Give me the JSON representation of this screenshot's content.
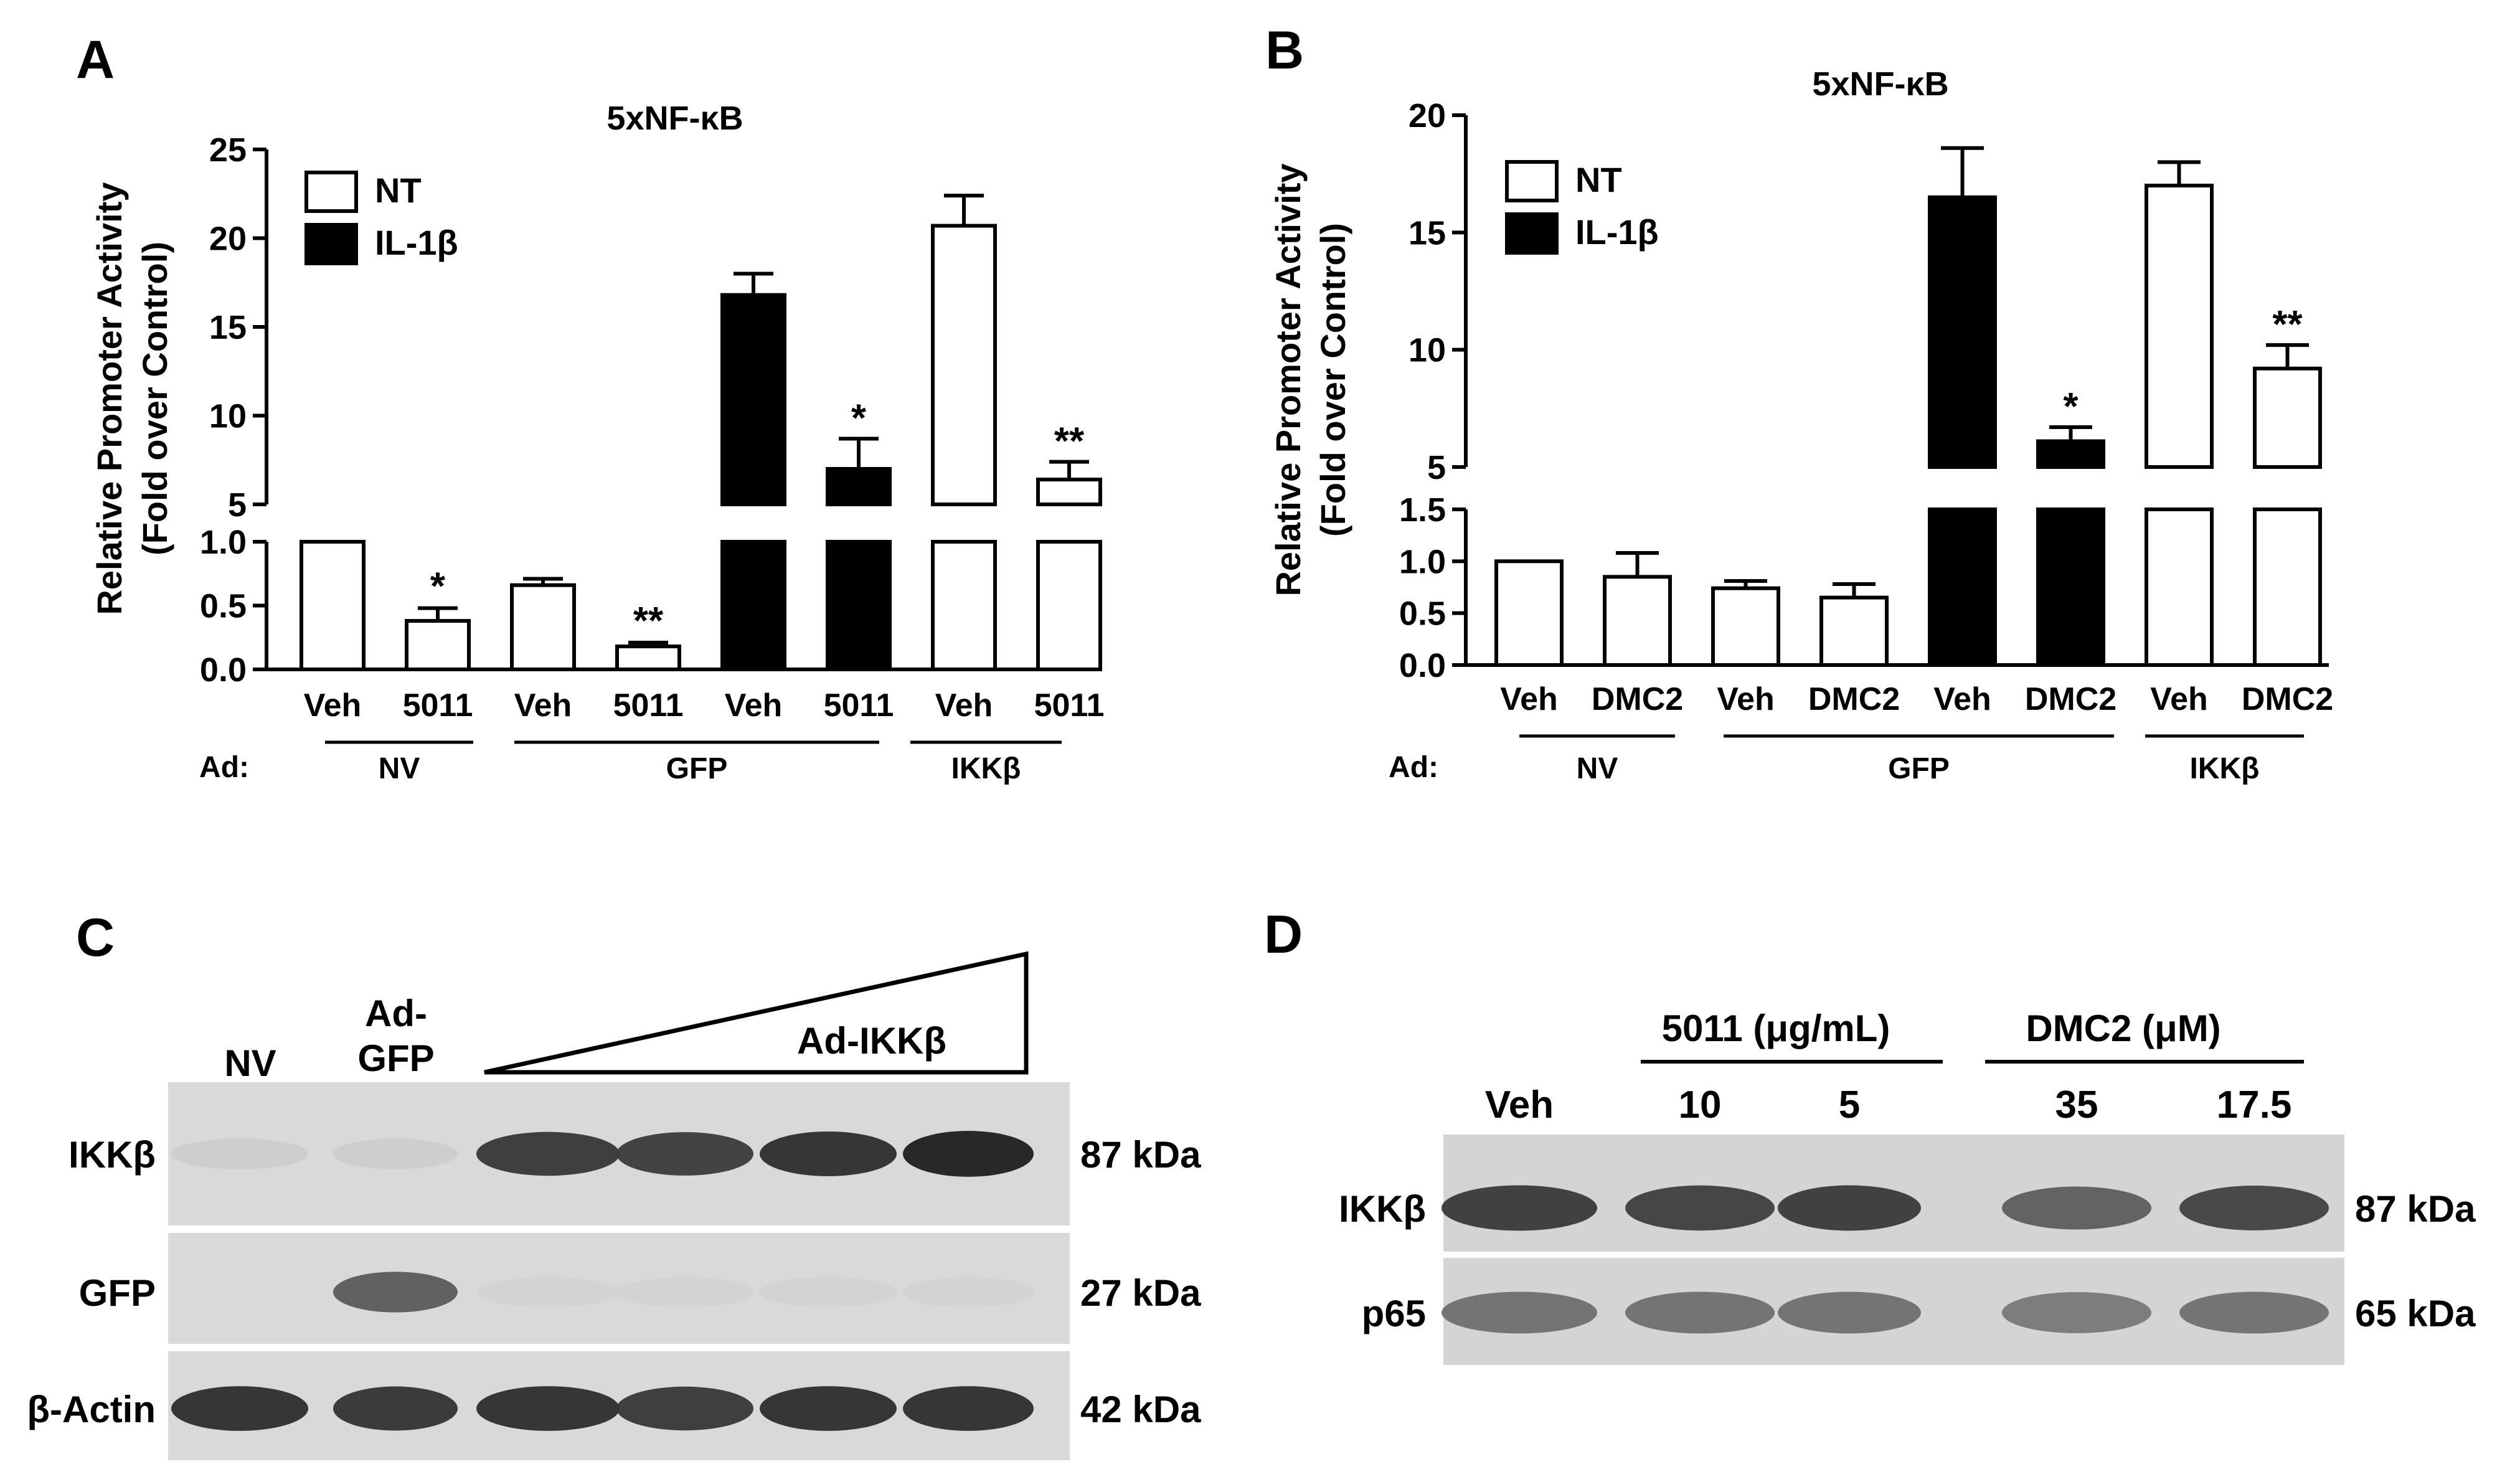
{
  "panels": {
    "A": {
      "letter": "A",
      "title": "5xNF-κB",
      "ylabel_line1": "Relative Promoter Activity",
      "ylabel_line2": "(Fold over Control)"
    },
    "B": {
      "letter": "B",
      "title": "5xNF-κB",
      "ylabel_line1": "Relative Promoter Activity",
      "ylabel_line2": "(Fold over Control)"
    },
    "C": {
      "letter": "C",
      "lane_headers": {
        "nv": "NV",
        "ad_gfp_line1": "Ad-",
        "ad_gfp_line2": "GFP",
        "ad_ikkb": "Ad-IKKβ"
      },
      "rows": [
        {
          "label": "IKKβ",
          "size": "87 kDa",
          "intensities": [
            0.05,
            0.05,
            0.8,
            0.78,
            0.85,
            0.92
          ]
        },
        {
          "label": "GFP",
          "size": "27 kDa",
          "intensities": [
            0.0,
            0.62,
            0.02,
            0.02,
            0.02,
            0.02
          ]
        },
        {
          "label": "β-Actin",
          "size": "42 kDa",
          "intensities": [
            0.85,
            0.82,
            0.85,
            0.8,
            0.85,
            0.85
          ]
        }
      ]
    },
    "D": {
      "letter": "D",
      "group_5011": "5011 (μg/mL)",
      "group_dmc2": "DMC2 (μM)",
      "lanes": [
        "Veh",
        "10",
        "5",
        "35",
        "17.5"
      ],
      "rows": [
        {
          "label": "IKKβ",
          "size": "87 kDa",
          "intensities": [
            0.85,
            0.82,
            0.85,
            0.65,
            0.8
          ]
        },
        {
          "label": "p65",
          "size": "65 kDa",
          "intensities": [
            0.55,
            0.55,
            0.55,
            0.5,
            0.55
          ]
        }
      ]
    }
  },
  "chart_data": [
    {
      "panel": "A",
      "type": "bar",
      "title": "5xNF-κB",
      "ylabel": "Relative Promoter Activity (Fold over Control)",
      "y_break": {
        "lower_range": [
          0,
          1.0
        ],
        "upper_range": [
          5,
          25
        ]
      },
      "yticks_lower": [
        "0.0",
        "0.5",
        "1.0"
      ],
      "yticks_upper": [
        "5",
        "10",
        "15",
        "20",
        "25"
      ],
      "legend": [
        {
          "label": "NT",
          "fill": "#ffffff"
        },
        {
          "label": "IL-1β",
          "fill": "#000000"
        }
      ],
      "legend_position": "top-left",
      "categories": [
        "Veh",
        "5011",
        "Veh",
        "5011",
        "Veh",
        "5011",
        "Veh",
        "5011"
      ],
      "bars": [
        {
          "label": "Veh",
          "series": "NT",
          "value": 1.0,
          "error": 0,
          "sig": ""
        },
        {
          "label": "5011",
          "series": "NT",
          "value": 0.38,
          "error": 0.1,
          "sig": "*"
        },
        {
          "label": "Veh",
          "series": "NT",
          "value": 0.66,
          "error": 0.05,
          "sig": ""
        },
        {
          "label": "5011",
          "series": "NT",
          "value": 0.18,
          "error": 0.03,
          "sig": "**"
        },
        {
          "label": "Veh",
          "series": "IL-1β",
          "value": 16.8,
          "error": 1.2,
          "sig": ""
        },
        {
          "label": "5011",
          "series": "IL-1β",
          "value": 7.0,
          "error": 1.7,
          "sig": "*"
        },
        {
          "label": "Veh",
          "series": "NT",
          "value": 20.7,
          "error": 1.7,
          "sig": ""
        },
        {
          "label": "5011",
          "series": "NT",
          "value": 6.4,
          "error": 1.0,
          "sig": "**"
        }
      ],
      "ad_label": "Ad:",
      "groups": [
        {
          "label": "NV",
          "bars": [
            0,
            1
          ]
        },
        {
          "label": "GFP",
          "bars": [
            2,
            5
          ]
        },
        {
          "label": "IKKβ",
          "bars": [
            6,
            7
          ]
        }
      ]
    },
    {
      "panel": "B",
      "type": "bar",
      "title": "5xNF-κB",
      "ylabel": "Relative Promoter Activity (Fold over Control)",
      "y_break": {
        "lower_range": [
          0,
          1.5
        ],
        "upper_range": [
          5,
          20
        ]
      },
      "yticks_lower": [
        "0.0",
        "0.5",
        "1.0",
        "1.5"
      ],
      "yticks_upper": [
        "5",
        "10",
        "15",
        "20"
      ],
      "legend": [
        {
          "label": "NT",
          "fill": "#ffffff"
        },
        {
          "label": "IL-1β",
          "fill": "#000000"
        }
      ],
      "legend_position": "top-left",
      "categories": [
        "Veh",
        "DMC2",
        "Veh",
        "DMC2",
        "Veh",
        "DMC2",
        "Veh",
        "DMC2"
      ],
      "bars": [
        {
          "label": "Veh",
          "series": "NT",
          "value": 1.0,
          "error": 0,
          "sig": ""
        },
        {
          "label": "DMC2",
          "series": "NT",
          "value": 0.85,
          "error": 0.23,
          "sig": ""
        },
        {
          "label": "Veh",
          "series": "NT",
          "value": 0.74,
          "error": 0.07,
          "sig": ""
        },
        {
          "label": "DMC2",
          "series": "NT",
          "value": 0.65,
          "error": 0.13,
          "sig": ""
        },
        {
          "label": "Veh",
          "series": "IL-1β",
          "value": 16.5,
          "error": 2.1,
          "sig": ""
        },
        {
          "label": "DMC2",
          "series": "IL-1β",
          "value": 6.1,
          "error": 0.6,
          "sig": "*"
        },
        {
          "label": "Veh",
          "series": "NT",
          "value": 17.0,
          "error": 1.0,
          "sig": ""
        },
        {
          "label": "DMC2",
          "series": "NT",
          "value": 9.2,
          "error": 1.0,
          "sig": "**"
        }
      ],
      "ad_label": "Ad:",
      "groups": [
        {
          "label": "NV",
          "bars": [
            0,
            1
          ]
        },
        {
          "label": "GFP",
          "bars": [
            2,
            5
          ]
        },
        {
          "label": "IKKβ",
          "bars": [
            6,
            7
          ]
        }
      ]
    }
  ]
}
